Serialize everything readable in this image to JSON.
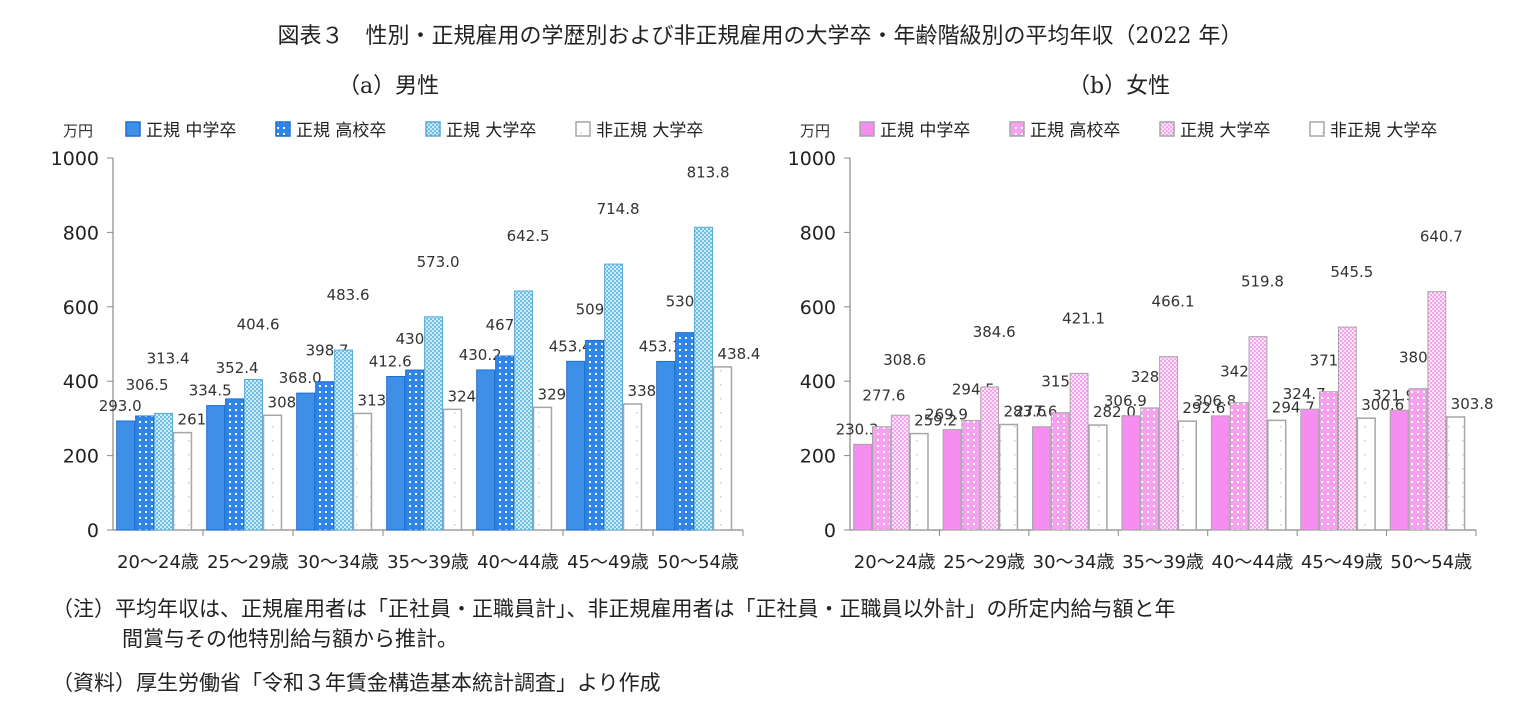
{
  "title": "図表３　性別・正規雇用の学歴別および非正規雇用の大学卒・年齢階級別の平均年収（2022 年）",
  "charts": {
    "male": {
      "subtitle": "（a）男性"
    },
    "female": {
      "subtitle": "（b）女性"
    }
  },
  "notes": {
    "note_label": "（注）",
    "note_line1": "平均年収は、正規雇用者は「正社員・正職員計」、非正規雇用者は「正社員・正職員以外計」の所定内給与額と年",
    "note_line2": "間賞与その他特別給与額から推計。",
    "source": "（資料）厚生労働省「令和３年賃金構造基本統計調査」より作成"
  },
  "colors": {
    "male_junior": "#3d8fe8",
    "male_high": "#2f86e6",
    "male_univ": "#8fd0ec",
    "female_junior": "#f58ef0",
    "female_high": "#f7a8f2",
    "female_univ": "#f9c7f5",
    "nonregular": "#ffffff",
    "frame": "#a6a6a6"
  },
  "chart_data": [
    {
      "type": "bar",
      "title": "（a）男性",
      "unit_label": "万円",
      "categories": [
        "20～24歳",
        "25～29歳",
        "30～34歳",
        "35～39歳",
        "40～44歳",
        "45～49歳",
        "50～54歳"
      ],
      "ylim": [
        0,
        1000
      ],
      "yticks": [
        0,
        200,
        400,
        600,
        800,
        1000
      ],
      "grid": false,
      "legend": "top",
      "series": [
        {
          "name": "正規 中学卒",
          "values": [
            293.0,
            334.5,
            368.0,
            412.6,
            430.2,
            453.4,
            453.1
          ]
        },
        {
          "name": "正規 高校卒",
          "values": [
            306.5,
            352.4,
            398.7,
            430.0,
            467.7,
            509.6,
            530.5
          ]
        },
        {
          "name": "正規 大学卒",
          "values": [
            313.4,
            404.6,
            483.6,
            573.0,
            642.5,
            714.8,
            813.8
          ]
        },
        {
          "name": "非正規 大学卒",
          "values": [
            261.8,
            308.4,
            313.3,
            324.3,
            329.7,
            338.6,
            438.4
          ]
        }
      ]
    },
    {
      "type": "bar",
      "title": "（b）女性",
      "unit_label": "万円",
      "categories": [
        "20～24歳",
        "25～29歳",
        "30～34歳",
        "35～39歳",
        "40～44歳",
        "45～49歳",
        "50～54歳"
      ],
      "ylim": [
        0,
        1000
      ],
      "yticks": [
        0,
        200,
        400,
        600,
        800,
        1000
      ],
      "grid": false,
      "legend": "top",
      "series": [
        {
          "name": "正規 中学卒",
          "values": [
            230.3,
            269.9,
            277.6,
            306.9,
            306.8,
            324.7,
            321.9
          ]
        },
        {
          "name": "正規 高校卒",
          "values": [
            277.6,
            294.5,
            315.4,
            328.3,
            342.2,
            371.7,
            380.0
          ]
        },
        {
          "name": "正規 大学卒",
          "values": [
            308.6,
            384.6,
            421.1,
            466.1,
            519.8,
            545.5,
            640.7
          ]
        },
        {
          "name": "非正規 大学卒",
          "values": [
            259.2,
            283.6,
            282.0,
            292.6,
            294.7,
            300.6,
            303.8
          ]
        }
      ]
    }
  ]
}
